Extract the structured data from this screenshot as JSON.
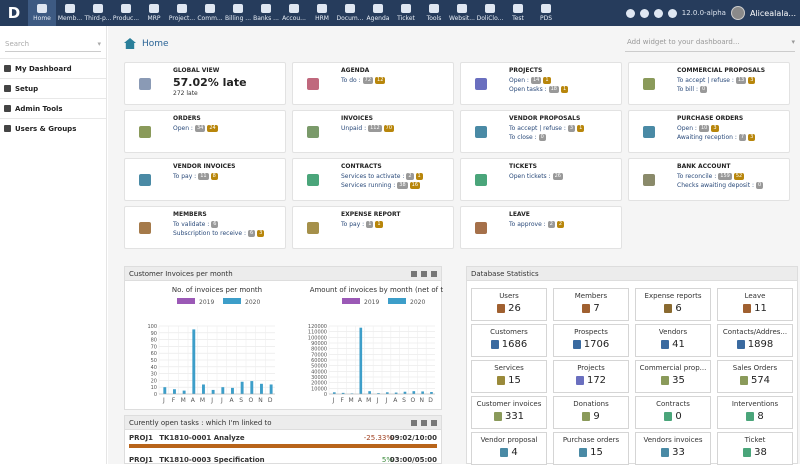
{
  "topbar": {
    "logo": "D",
    "menu": [
      "Home",
      "Memb...",
      "Third-p...",
      "Produc...",
      "MRP",
      "Project...",
      "Comm...",
      "Billing ...",
      "Banks ...",
      "Accou...",
      "HRM",
      "Docum...",
      "Agenda",
      "Ticket",
      "Tools",
      "Websit...",
      "DoliClo...",
      "Test",
      "PDS"
    ],
    "version": "12.0.0-alpha",
    "user": "Alicealala..."
  },
  "sidebar": {
    "search_placeholder": "Search",
    "items": [
      "My Dashboard",
      "Setup",
      "Admin Tools",
      "Users & Groups"
    ]
  },
  "main": {
    "home": "Home",
    "widget_placeholder": "Add widget to your dashboard..."
  },
  "boxes": [
    {
      "title": "GLOBAL VIEW",
      "big": "57.02% late",
      "sub": "272 late",
      "icon_color": "#8a9ab5"
    },
    {
      "title": "AGENDA",
      "lines": [
        {
          "label": "To do :",
          "n": "72",
          "w": "12"
        }
      ],
      "icon_color": "#c0687d"
    },
    {
      "title": "PROJECTS",
      "lines": [
        {
          "label": "Open :",
          "n": "14",
          "w": "1"
        },
        {
          "label": "Open tasks :",
          "n": "18",
          "w": "1"
        }
      ],
      "icon_color": "#6a6fbf"
    },
    {
      "title": "COMMERCIAL PROPOSALS",
      "lines": [
        {
          "label": "To accept | refuse :",
          "n": "13",
          "w": "3"
        },
        {
          "label": "To bill :",
          "n": "0",
          "w": ""
        }
      ],
      "icon_color": "#8a9a5a"
    },
    {
      "title": "ORDERS",
      "lines": [
        {
          "label": "Open :",
          "n": "34",
          "w": "24"
        }
      ],
      "icon_color": "#8a9a5a"
    },
    {
      "title": "INVOICES",
      "lines": [
        {
          "label": "Unpaid :",
          "n": "112",
          "w": "70"
        }
      ],
      "icon_color": "#7a9a6a"
    },
    {
      "title": "VENDOR PROPOSALS",
      "lines": [
        {
          "label": "To accept | refuse :",
          "n": "3",
          "w": "1"
        },
        {
          "label": "To close :",
          "n": "0",
          "w": ""
        }
      ],
      "icon_color": "#4a8aa5"
    },
    {
      "title": "PURCHASE ORDERS",
      "lines": [
        {
          "label": "Open :",
          "n": "10",
          "w": "3"
        },
        {
          "label": "Awaiting reception :",
          "n": "7",
          "w": "3"
        }
      ],
      "icon_color": "#4a8aa5"
    },
    {
      "title": "VENDOR INVOICES",
      "lines": [
        {
          "label": "To pay :",
          "n": "11",
          "w": "8"
        }
      ],
      "icon_color": "#4a8aa5"
    },
    {
      "title": "CONTRACTS",
      "lines": [
        {
          "label": "Services to activate :",
          "n": "2",
          "w": "1"
        },
        {
          "label": "Services running :",
          "n": "38",
          "w": "16"
        }
      ],
      "icon_color": "#4aa57a"
    },
    {
      "title": "TICKETS",
      "lines": [
        {
          "label": "Open tickets :",
          "n": "26",
          "w": ""
        }
      ],
      "icon_color": "#4aa57a"
    },
    {
      "title": "BANK ACCOUNT",
      "lines": [
        {
          "label": "To reconcile :",
          "n": "159",
          "w": "52"
        },
        {
          "label": "Checks awaiting deposit :",
          "n": "0",
          "w": ""
        }
      ],
      "icon_color": "#8a8a6a"
    },
    {
      "title": "MEMBERS",
      "lines": [
        {
          "label": "To validate :",
          "n": "6",
          "w": ""
        },
        {
          "label": "Subscription to receive :",
          "n": "6",
          "w": "3"
        }
      ],
      "icon_color": "#a57a4a"
    },
    {
      "title": "EXPENSE REPORT",
      "lines": [
        {
          "label": "To pay :",
          "n": "1",
          "w": "1"
        }
      ],
      "icon_color": "#a5904a"
    },
    {
      "title": "LEAVE",
      "lines": [
        {
          "label": "To approve :",
          "n": "2",
          "w": "2"
        }
      ],
      "icon_color": "#a5704a"
    }
  ],
  "invoices_panel": {
    "title": "Customer Invoices per month",
    "legend": [
      "2019",
      "2020"
    ]
  },
  "chart_data": [
    {
      "type": "bar",
      "title": "No. of invoices per month",
      "categories": [
        "J",
        "F",
        "M",
        "A",
        "M",
        "J",
        "J",
        "A",
        "S",
        "O",
        "N",
        "D"
      ],
      "ylim": [
        0,
        100
      ],
      "yticks": [
        "0",
        "10",
        "20",
        "30",
        "40",
        "50",
        "60",
        "70",
        "80",
        "90",
        "100"
      ],
      "series": [
        {
          "name": "2019",
          "values": [
            0,
            0,
            0,
            0,
            0,
            0,
            0,
            0,
            0,
            0,
            0,
            0
          ]
        },
        {
          "name": "2020",
          "values": [
            10,
            7,
            5,
            95,
            14,
            6,
            10,
            9,
            18,
            19,
            15,
            14
          ]
        }
      ]
    },
    {
      "type": "bar",
      "title": "Amount of invoices by month (net of tax)",
      "categories": [
        "J",
        "F",
        "M",
        "A",
        "M",
        "J",
        "J",
        "A",
        "S",
        "O",
        "N",
        "D"
      ],
      "ylim": [
        0,
        120000
      ],
      "yticks": [
        "0",
        "10000",
        "20000",
        "30000",
        "40000",
        "50000",
        "60000",
        "70000",
        "80000",
        "90000",
        "100000",
        "110000",
        "120000"
      ],
      "series": [
        {
          "name": "2019",
          "values": [
            0,
            0,
            0,
            0,
            0,
            0,
            0,
            0,
            0,
            0,
            0,
            0
          ]
        },
        {
          "name": "2020",
          "values": [
            3000,
            2000,
            1000,
            117000,
            5000,
            1500,
            3000,
            2500,
            4000,
            5000,
            4500,
            3500
          ]
        }
      ]
    }
  ],
  "tasks_panel": {
    "title": "Curently open tasks : which I'm linked to",
    "rows": [
      {
        "ref": "PROJ1",
        "task": "TK1810-0001 Analyze",
        "pct": "-25.33%",
        "time": "09:02/10:00"
      },
      {
        "ref": "PROJ1",
        "task": "TK1810-0003 Specification",
        "pct": "5%",
        "time": "03:00/05:00"
      }
    ]
  },
  "stats_panel": {
    "title": "Database Statistics",
    "items": [
      {
        "label": "Users",
        "value": "26",
        "color": "#a06030"
      },
      {
        "label": "Members",
        "value": "7",
        "color": "#a06030"
      },
      {
        "label": "Expense reports",
        "value": "6",
        "color": "#8a6a30"
      },
      {
        "label": "Leave",
        "value": "11",
        "color": "#a06030"
      },
      {
        "label": "Customers",
        "value": "1686",
        "color": "#3a6aa0"
      },
      {
        "label": "Prospects",
        "value": "1706",
        "color": "#3a6aa0"
      },
      {
        "label": "Vendors",
        "value": "41",
        "color": "#3a6aa0"
      },
      {
        "label": "Contacts/Addres...",
        "value": "1898",
        "color": "#3a6aa0"
      },
      {
        "label": "Services",
        "value": "15",
        "color": "#9a8a3a"
      },
      {
        "label": "Projects",
        "value": "172",
        "color": "#6a6fbf"
      },
      {
        "label": "Commercial prop...",
        "value": "35",
        "color": "#8a9a5a"
      },
      {
        "label": "Sales Orders",
        "value": "574",
        "color": "#8a9a5a"
      },
      {
        "label": "Customer invoices",
        "value": "331",
        "color": "#8a9a5a"
      },
      {
        "label": "Donations",
        "value": "9",
        "color": "#8a9a5a"
      },
      {
        "label": "Contracts",
        "value": "0",
        "color": "#4aa57a"
      },
      {
        "label": "Interventions",
        "value": "8",
        "color": "#4aa57a"
      },
      {
        "label": "Vendor proposal",
        "value": "4",
        "color": "#4a8aa5"
      },
      {
        "label": "Purchase orders",
        "value": "15",
        "color": "#4a8aa5"
      },
      {
        "label": "Vendors invoices",
        "value": "33",
        "color": "#4a8aa5"
      },
      {
        "label": "Ticket",
        "value": "38",
        "color": "#4aa57a"
      }
    ]
  }
}
